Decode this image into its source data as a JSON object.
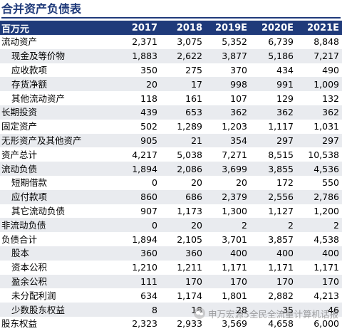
{
  "title": "合并资产负债表",
  "table": {
    "headers": [
      "百万元",
      "2017",
      "2018",
      "2019E",
      "2020E",
      "2021E"
    ],
    "rows": [
      {
        "label": "流动资产",
        "indent": false,
        "values": [
          "2,371",
          "3,075",
          "5,352",
          "6,739",
          "8,848"
        ]
      },
      {
        "label": "现金及等价物",
        "indent": true,
        "values": [
          "1,883",
          "2,622",
          "3,877",
          "5,186",
          "7,217"
        ]
      },
      {
        "label": "应收款项",
        "indent": true,
        "values": [
          "350",
          "275",
          "370",
          "434",
          "490"
        ]
      },
      {
        "label": "存货净额",
        "indent": true,
        "values": [
          "20",
          "17",
          "998",
          "991",
          "1,009"
        ]
      },
      {
        "label": "其他流动资产",
        "indent": true,
        "values": [
          "118",
          "161",
          "107",
          "129",
          "132"
        ]
      },
      {
        "label": "长期投资",
        "indent": false,
        "values": [
          "439",
          "653",
          "362",
          "362",
          "362"
        ]
      },
      {
        "label": "固定资产",
        "indent": false,
        "values": [
          "502",
          "1,289",
          "1,203",
          "1,117",
          "1,031"
        ]
      },
      {
        "label": "无形资产及其他资产",
        "indent": false,
        "values": [
          "905",
          "21",
          "354",
          "297",
          "297"
        ]
      },
      {
        "label": "资产总计",
        "indent": false,
        "values": [
          "4,217",
          "5,038",
          "7,271",
          "8,515",
          "10,538"
        ]
      },
      {
        "label": "流动负债",
        "indent": false,
        "values": [
          "1,894",
          "2,086",
          "3,699",
          "3,855",
          "4,536"
        ]
      },
      {
        "label": "短期借款",
        "indent": true,
        "values": [
          "0",
          "20",
          "20",
          "172",
          "550"
        ]
      },
      {
        "label": "应付款项",
        "indent": true,
        "values": [
          "860",
          "686",
          "2,379",
          "2,556",
          "2,786"
        ]
      },
      {
        "label": "其它流动负债",
        "indent": true,
        "values": [
          "907",
          "1,173",
          "1,300",
          "1,127",
          "1,200"
        ]
      },
      {
        "label": "非流动负债",
        "indent": false,
        "values": [
          "0",
          "20",
          "2",
          "2",
          "2"
        ]
      },
      {
        "label": "负债合计",
        "indent": false,
        "values": [
          "1,894",
          "2,105",
          "3,701",
          "3,857",
          "4,538"
        ]
      },
      {
        "label": "股本",
        "indent": true,
        "values": [
          "360",
          "360",
          "400",
          "400",
          "400"
        ]
      },
      {
        "label": "资本公积",
        "indent": true,
        "values": [
          "1,210",
          "1,211",
          "1,171",
          "1,171",
          "1,171"
        ]
      },
      {
        "label": "盈余公积",
        "indent": true,
        "values": [
          "111",
          "170",
          "170",
          "170",
          "170"
        ]
      },
      {
        "label": "未分配利润",
        "indent": true,
        "values": [
          "634",
          "1,174",
          "1,801",
          "2,882",
          "4,213"
        ]
      },
      {
        "label": "少数股东权益",
        "indent": true,
        "values": [
          "8",
          "18",
          "28",
          "35",
          "46"
        ]
      },
      {
        "label": "股东权益",
        "indent": false,
        "values": [
          "2,323",
          "2,933",
          "3,569",
          "4,658",
          "6,000"
        ]
      }
    ]
  },
  "watermark": {
    "icon": "wechat-icon",
    "text": "申万宏源5全民全流量计算机话报"
  }
}
